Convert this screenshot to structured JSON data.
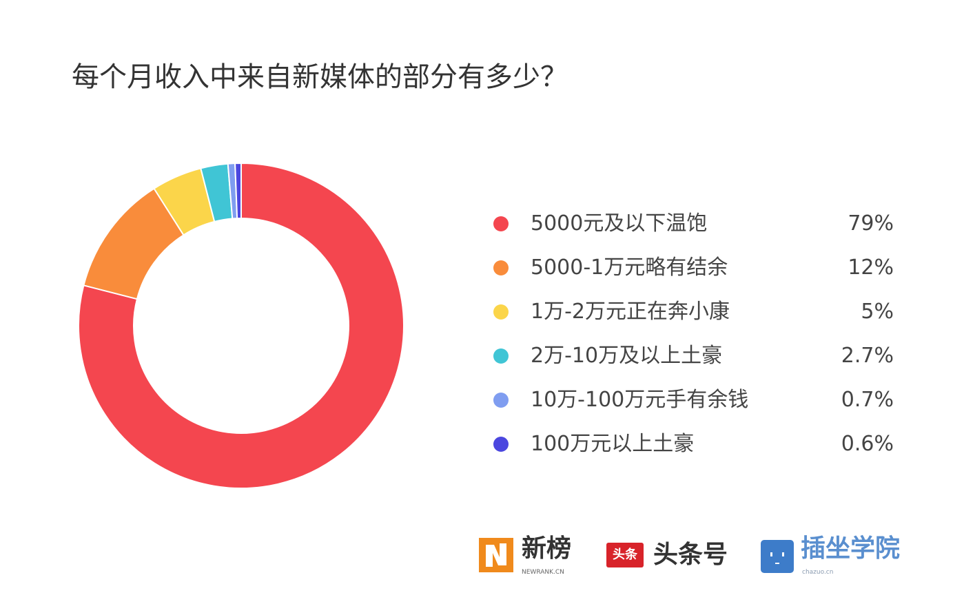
{
  "chart_data": {
    "type": "pie",
    "variant": "donut",
    "title": "每个月收入中来自新媒体的部分有多少？",
    "legend_position": "right",
    "categories": [
      "5000元及以下温饱",
      "5000-1万元略有结余",
      "1万-2万元正在奔小康",
      "2万-10万及以上土豪",
      "10万-100万元手有余钱",
      "100万元以上土豪"
    ],
    "values": [
      79,
      12,
      5,
      2.7,
      0.7,
      0.6
    ],
    "value_labels": [
      "79%",
      "12%",
      "5%",
      "2.7%",
      "0.7%",
      "0.6%"
    ],
    "colors": [
      "#f4464f",
      "#f98c3b",
      "#fbd54a",
      "#40c5d5",
      "#7f9df0",
      "#4b47df"
    ]
  },
  "logos": [
    {
      "name": "新榜",
      "sub": "NEWRANK.CN",
      "color": "#f08a1c"
    },
    {
      "name": "头条号",
      "badge": "头条",
      "color": "#d8232a"
    },
    {
      "name": "插坐学院",
      "sub": "chazuo.cn",
      "color": "#3d7cc9"
    }
  ]
}
